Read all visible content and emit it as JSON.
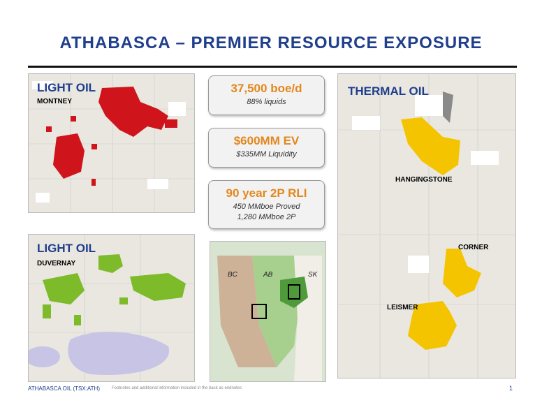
{
  "header": {
    "title": "ATHABASCA – PREMIER RESOURCE EXPOSURE"
  },
  "maps": {
    "montney": {
      "play": "LIGHT OIL",
      "name": "MONTNEY"
    },
    "duvernay": {
      "play": "LIGHT OIL",
      "name": "DUVERNAY"
    },
    "thermal": {
      "play": "THERMAL OIL",
      "areas": [
        "HANGINGSTONE",
        "CORNER",
        "LEISMER"
      ]
    },
    "regional": {
      "labels": [
        "BC",
        "AB",
        "SK"
      ]
    }
  },
  "stats": [
    {
      "headline": "37,500 boe/d",
      "lines": [
        "88% liquids"
      ]
    },
    {
      "headline": "$600MM EV",
      "lines": [
        "$335MM Liquidity"
      ]
    },
    {
      "headline": "90 year 2P RLI",
      "lines": [
        "450 MMboe Proved",
        "1,280 MMboe 2P"
      ]
    }
  ],
  "footer": {
    "company": "ATHABASCA OIL (TSX:ATH)",
    "note": "Footnotes and additional information included in the back as endnotes",
    "page": "1"
  }
}
